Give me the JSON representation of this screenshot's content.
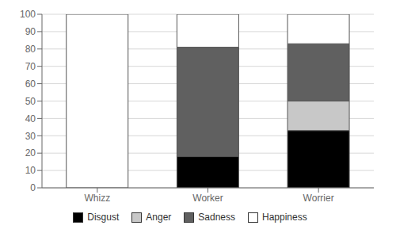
{
  "chart_data": {
    "type": "bar",
    "stacked": true,
    "categories": [
      "Whizz",
      "Worker",
      "Worrier"
    ],
    "series": [
      {
        "name": "Disgust",
        "color": "#000000",
        "values": [
          0,
          18,
          33
        ]
      },
      {
        "name": "Anger",
        "color": "#c8c8c8",
        "values": [
          0,
          0,
          17
        ]
      },
      {
        "name": "Sadness",
        "color": "#606060",
        "values": [
          0,
          63,
          33
        ]
      },
      {
        "name": "Happiness",
        "color": "#ffffff",
        "values": [
          100,
          19,
          17
        ]
      }
    ],
    "ylim": [
      0,
      100
    ],
    "yticks": [
      0,
      10,
      20,
      30,
      40,
      50,
      60,
      70,
      80,
      90,
      100
    ],
    "grid": true,
    "legend": "bottom"
  }
}
